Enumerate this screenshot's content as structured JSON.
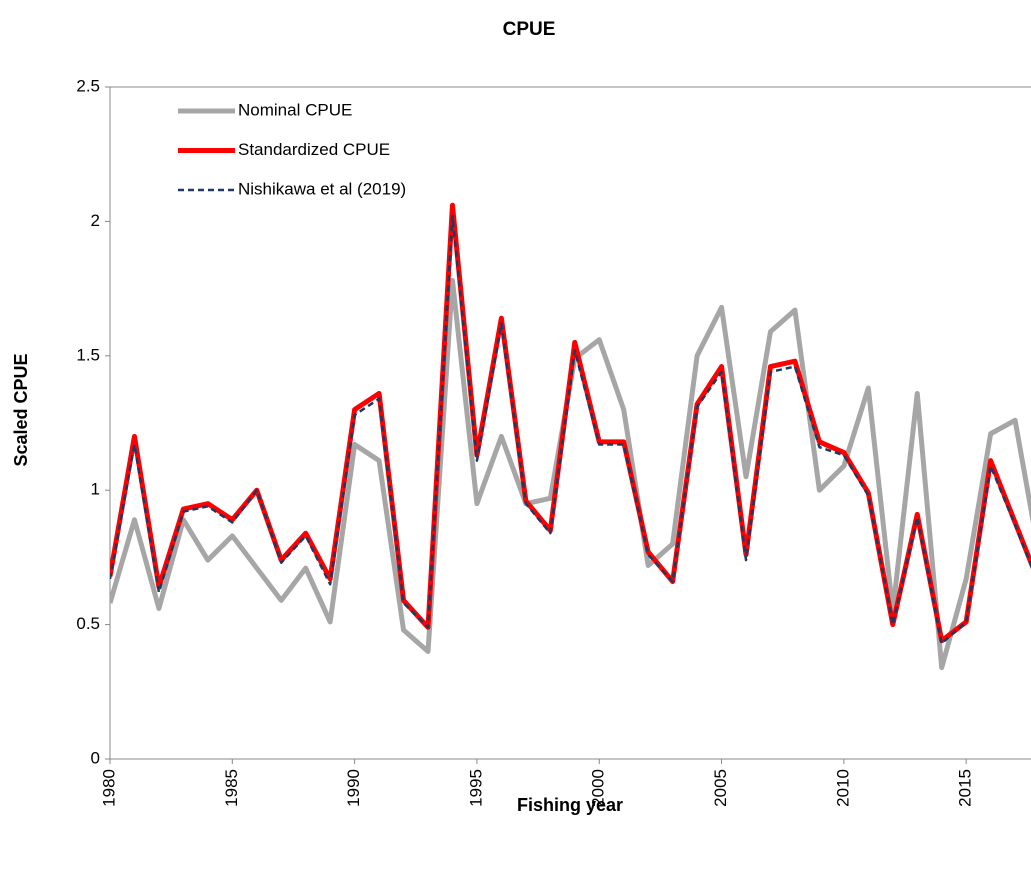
{
  "chart_data": {
    "type": "line",
    "title": "CPUE",
    "x_label": "Fishing year",
    "y_label": "Scaled CPUE",
    "x": [
      1980,
      1981,
      1982,
      1983,
      1984,
      1985,
      1986,
      1987,
      1988,
      1989,
      1990,
      1991,
      1992,
      1993,
      1994,
      1995,
      1996,
      1997,
      1998,
      1999,
      2000,
      2001,
      2002,
      2003,
      2004,
      2005,
      2006,
      2007,
      2008,
      2009,
      2010,
      2011,
      2012,
      2013,
      2014,
      2015,
      2016,
      2017,
      2018
    ],
    "series": [
      {
        "name": "Nominal CPUE",
        "color": "#a6a6a6",
        "dash": "solid",
        "values": [
          0.58,
          0.89,
          0.56,
          0.89,
          0.74,
          0.83,
          0.71,
          0.59,
          0.71,
          0.51,
          1.17,
          1.11,
          0.48,
          0.4,
          1.78,
          0.95,
          1.2,
          0.95,
          0.97,
          1.49,
          1.56,
          1.3,
          0.72,
          0.8,
          1.5,
          1.68,
          1.05,
          1.59,
          1.67,
          1.0,
          1.09,
          1.38,
          0.55,
          1.36,
          0.34,
          0.67,
          1.21,
          1.26,
          0.75
        ]
      },
      {
        "name": "Standardized CPUE",
        "color": "#ff0000",
        "dash": "solid",
        "values": [
          0.68,
          1.2,
          0.64,
          0.93,
          0.95,
          0.89,
          1.0,
          0.74,
          0.84,
          0.67,
          1.3,
          1.36,
          0.59,
          0.49,
          2.06,
          1.13,
          1.64,
          0.96,
          0.85,
          1.55,
          1.18,
          1.18,
          0.77,
          0.66,
          1.32,
          1.46,
          0.76,
          1.46,
          1.48,
          1.18,
          1.14,
          0.99,
          0.5,
          0.91,
          0.44,
          0.51,
          1.11,
          0.88,
          0.65
        ]
      },
      {
        "name": "Nishikawa et al (2019)",
        "color": "#1f3864",
        "dash": "dashed",
        "values": [
          0.67,
          1.17,
          0.62,
          0.92,
          0.94,
          0.88,
          1.0,
          0.73,
          0.83,
          0.65,
          1.28,
          1.34,
          0.58,
          0.49,
          2.02,
          1.11,
          1.62,
          0.95,
          0.84,
          1.52,
          1.17,
          1.17,
          0.76,
          0.66,
          1.31,
          1.44,
          0.74,
          1.44,
          1.46,
          1.16,
          1.13,
          0.98,
          0.5,
          0.9,
          0.43,
          0.51,
          1.09,
          0.87,
          0.64
        ]
      }
    ],
    "xlim": [
      1980,
      2017.65
    ],
    "xticks": [
      1980,
      1985,
      1990,
      1995,
      2000,
      2005,
      2010,
      2015
    ],
    "ylim": [
      0,
      2.5
    ],
    "yticks": [
      0,
      0.5,
      1,
      1.5,
      2,
      2.5
    ],
    "legend": "upper left",
    "grid": false
  }
}
